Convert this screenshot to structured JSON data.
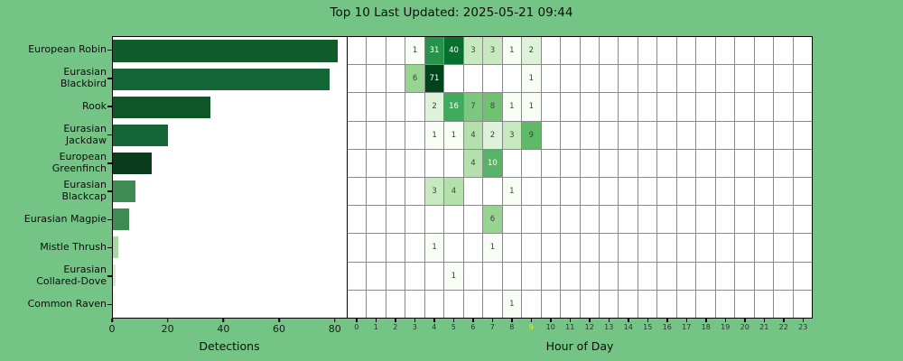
{
  "title": "Top 10 Last Updated: 2025-05-21 09:44",
  "colors": {
    "background": "#74c585",
    "panel": "#ffffff",
    "grid_line": "#8a8a8a",
    "border": "#000000",
    "current_hour_label": "#ebeb00",
    "cell_text_dark": "#404040",
    "cell_text_light": "#ffffff"
  },
  "bar_chart": {
    "xlabel": "Detections",
    "tick_values": [
      0,
      20,
      40,
      60,
      80
    ],
    "xmax": 84.3
  },
  "heatmap": {
    "xlabel": "Hour of Day",
    "hours": [
      "0",
      "1",
      "2",
      "3",
      "4",
      "5",
      "6",
      "7",
      "8",
      "9",
      "10",
      "11",
      "12",
      "13",
      "14",
      "15",
      "16",
      "17",
      "18",
      "19",
      "20",
      "21",
      "22",
      "23"
    ],
    "current_hour": "9"
  },
  "value_colors": {
    "1": [
      "#f7fcf5",
      "#404040"
    ],
    "2": [
      "#def2d9",
      "#404040"
    ],
    "3": [
      "#c7e9c0",
      "#404040"
    ],
    "4": [
      "#b4e1ab",
      "#404040"
    ],
    "6": [
      "#97d492",
      "#404040"
    ],
    "7": [
      "#7cc87d",
      "#404040"
    ],
    "8": [
      "#70c273",
      "#404040"
    ],
    "9": [
      "#5eba68",
      "#404040"
    ],
    "10": [
      "#55b465",
      "#ffffff"
    ],
    "16": [
      "#41ab5d",
      "#ffffff"
    ],
    "31": [
      "#27934a",
      "#ffffff"
    ],
    "40": [
      "#07702e",
      "#ffffff"
    ],
    "71": [
      "#00441b",
      "#ffffff"
    ]
  },
  "species": [
    {
      "name": "European Robin",
      "label_lines": [
        "European Robin"
      ],
      "count": 81,
      "bar_color": "#115c2b",
      "cells": {
        "3": 1,
        "4": 31,
        "5": 40,
        "6": 3,
        "7": 3,
        "8": 1,
        "9": 2
      }
    },
    {
      "name": "Eurasian Blackbird",
      "label_lines": [
        "Eurasian",
        "Blackbird"
      ],
      "count": 78,
      "bar_color": "#156636",
      "cells": {
        "3": 6,
        "4": 71,
        "9": 1
      }
    },
    {
      "name": "Rook",
      "label_lines": [
        "Rook"
      ],
      "count": 35,
      "bar_color": "#0e5628",
      "cells": {
        "4": 2,
        "5": 16,
        "6": 7,
        "7": 8,
        "8": 1,
        "9": 1
      }
    },
    {
      "name": "Eurasian Jackdaw",
      "label_lines": [
        "Eurasian",
        "Jackdaw"
      ],
      "count": 20,
      "bar_color": "#156636",
      "cells": {
        "4": 1,
        "5": 1,
        "6": 4,
        "7": 2,
        "8": 3,
        "9": 9
      }
    },
    {
      "name": "European Greenfinch",
      "label_lines": [
        "European",
        "Greenfinch"
      ],
      "count": 14,
      "bar_color": "#0a3b1b",
      "cells": {
        "6": 4,
        "7": 10
      }
    },
    {
      "name": "Eurasian Blackcap",
      "label_lines": [
        "Eurasian",
        "Blackcap"
      ],
      "count": 8,
      "bar_color": "#3e8b54",
      "cells": {
        "4": 3,
        "5": 4,
        "8": 1
      }
    },
    {
      "name": "Eurasian Magpie",
      "label_lines": [
        "Eurasian Magpie"
      ],
      "count": 6,
      "bar_color": "#3e8b54",
      "cells": {
        "7": 6
      }
    },
    {
      "name": "Mistle Thrush",
      "label_lines": [
        "Mistle Thrush"
      ],
      "count": 2,
      "bar_color": "#abd7a4",
      "cells": {
        "4": 1,
        "7": 1
      }
    },
    {
      "name": "Eurasian Collared-Dove",
      "label_lines": [
        "Eurasian",
        "Collared-Dove"
      ],
      "count": 1,
      "bar_color": "#d5ecce",
      "cells": {
        "5": 1
      }
    },
    {
      "name": "Common Raven",
      "label_lines": [
        "Common Raven"
      ],
      "count": 1,
      "bar_color": "#f2faf0",
      "cells": {
        "8": 1
      }
    }
  ],
  "chart_data": [
    {
      "type": "bar",
      "orientation": "horizontal",
      "title": "Top 10 Last Updated: 2025-05-21 09:44",
      "categories": [
        "European Robin",
        "Eurasian Blackbird",
        "Rook",
        "Eurasian Jackdaw",
        "European Greenfinch",
        "Eurasian Blackcap",
        "Eurasian Magpie",
        "Mistle Thrush",
        "Eurasian Collared-Dove",
        "Common Raven"
      ],
      "values": [
        81,
        78,
        35,
        20,
        14,
        8,
        6,
        2,
        1,
        1
      ],
      "xlabel": "Detections",
      "ylabel": "",
      "xlim": [
        0,
        84.3
      ],
      "xticks": [
        0,
        20,
        40,
        60,
        80
      ],
      "grid": false
    },
    {
      "type": "heatmap",
      "xlabel": "Hour of Day",
      "x": [
        0,
        1,
        2,
        3,
        4,
        5,
        6,
        7,
        8,
        9,
        10,
        11,
        12,
        13,
        14,
        15,
        16,
        17,
        18,
        19,
        20,
        21,
        22,
        23
      ],
      "highlighted_x_tick": 9,
      "rows": [
        "European Robin",
        "Eurasian Blackbird",
        "Rook",
        "Eurasian Jackdaw",
        "European Greenfinch",
        "Eurasian Blackcap",
        "Eurasian Magpie",
        "Mistle Thrush",
        "Eurasian Collared-Dove",
        "Common Raven"
      ],
      "values_by_hour": [
        {
          "3": 1,
          "4": 31,
          "5": 40,
          "6": 3,
          "7": 3,
          "8": 1,
          "9": 2
        },
        {
          "3": 6,
          "4": 71,
          "9": 1
        },
        {
          "4": 2,
          "5": 16,
          "6": 7,
          "7": 8,
          "8": 1,
          "9": 1
        },
        {
          "4": 1,
          "5": 1,
          "6": 4,
          "7": 2,
          "8": 3,
          "9": 9
        },
        {
          "6": 4,
          "7": 10
        },
        {
          "4": 3,
          "5": 4,
          "8": 1
        },
        {
          "7": 6
        },
        {
          "4": 1,
          "7": 1
        },
        {
          "5": 1
        },
        {
          "8": 1
        }
      ],
      "colormap": "Greens (log scale)",
      "grid": true
    }
  ]
}
